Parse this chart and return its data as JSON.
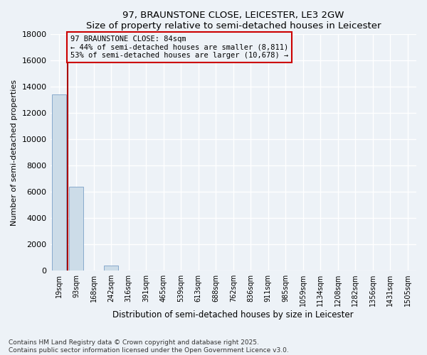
{
  "title_line1": "97, BRAUNSTONE CLOSE, LEICESTER, LE3 2GW",
  "title_line2": "Size of property relative to semi-detached houses in Leicester",
  "xlabel": "Distribution of semi-detached houses by size in Leicester",
  "ylabel": "Number of semi-detached properties",
  "bar_labels": [
    "19sqm",
    "93sqm",
    "168sqm",
    "242sqm",
    "316sqm",
    "391sqm",
    "465sqm",
    "539sqm",
    "613sqm",
    "688sqm",
    "762sqm",
    "836sqm",
    "911sqm",
    "985sqm",
    "1059sqm",
    "1134sqm",
    "1208sqm",
    "1282sqm",
    "1356sqm",
    "1431sqm",
    "1505sqm"
  ],
  "bar_values": [
    13400,
    6400,
    0,
    400,
    0,
    0,
    0,
    0,
    0,
    0,
    0,
    0,
    0,
    0,
    0,
    0,
    0,
    0,
    0,
    0,
    0
  ],
  "bar_color": "#ccdce8",
  "bar_edge_color": "#88aacc",
  "vline_x_index": 0.5,
  "vline_color": "#aa0000",
  "annotation_box_color": "#cc0000",
  "ylim": [
    0,
    18000
  ],
  "yticks": [
    0,
    2000,
    4000,
    6000,
    8000,
    10000,
    12000,
    14000,
    16000,
    18000
  ],
  "bg_color": "#edf2f7",
  "grid_color": "#ffffff",
  "footer": "Contains HM Land Registry data © Crown copyright and database right 2025.\nContains public sector information licensed under the Open Government Licence v3.0.",
  "ann_line1": "97 BRAUNSTONE CLOSE: 84sqm",
  "ann_line2": "← 44% of semi-detached houses are smaller (8,811)",
  "ann_line3": "53% of semi-detached houses are larger (10,678) →"
}
